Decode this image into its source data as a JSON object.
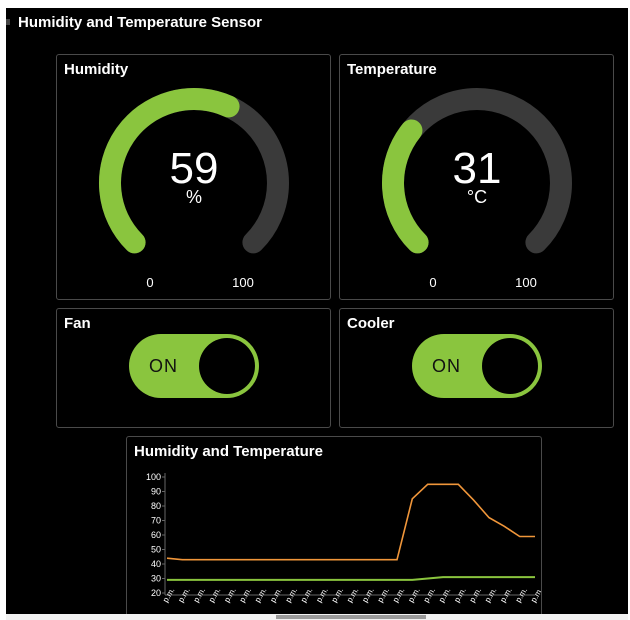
{
  "dashboard": {
    "title": "Humidity and Temperature Sensor"
  },
  "humidity": {
    "title": "Humidity",
    "value": "59",
    "unit": "%",
    "min": "0",
    "max": "100",
    "level": 59,
    "color": "#8ac53e"
  },
  "temperature": {
    "title": "Temperature",
    "value": "31",
    "unit": "°C",
    "min": "0",
    "max": "100",
    "level": 31,
    "color": "#8ac53e"
  },
  "fan": {
    "title": "Fan",
    "state": "ON"
  },
  "cooler": {
    "title": "Cooler",
    "state": "ON"
  },
  "chart_data": {
    "type": "line",
    "title": "Humidity and Temperature",
    "xlabel": "",
    "ylabel": "",
    "ylim": [
      20,
      100
    ],
    "yticks": [
      100,
      90,
      80,
      70,
      60,
      50,
      40,
      30,
      20
    ],
    "x_tick_label": "p.m.",
    "x_count": 25,
    "grid": false,
    "series": [
      {
        "color": "#f0963a",
        "values": [
          44,
          43,
          43,
          43,
          43,
          43,
          43,
          43,
          43,
          43,
          43,
          43,
          43,
          43,
          43,
          43,
          85,
          95,
          95,
          95,
          84,
          72,
          66,
          59,
          59
        ]
      },
      {
        "color": "#8ac53e",
        "values": [
          29,
          29,
          29,
          29,
          29,
          29,
          29,
          29,
          29,
          29,
          29,
          29,
          29,
          29,
          29,
          29,
          29,
          30,
          31,
          31,
          31,
          31,
          31,
          31,
          31
        ]
      }
    ]
  }
}
